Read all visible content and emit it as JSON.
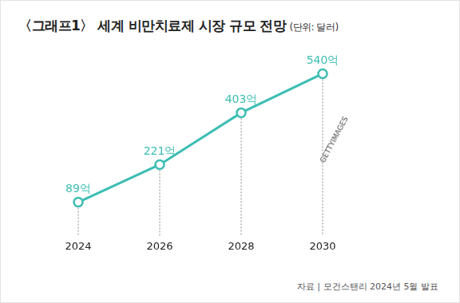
{
  "chart_data": {
    "type": "line",
    "title": "〈그래프1〉 세계 비만치료제 시장 규모 전망",
    "subtitle": "(단위: 달러)",
    "source": "자료 | 모건스탠리 2024년 5월 발표",
    "image_credit": "GETTYIMAGES",
    "categories": [
      "2024",
      "2026",
      "2028",
      "2030"
    ],
    "values": [
      89,
      221,
      403,
      540
    ],
    "value_labels": [
      "89억",
      "221억",
      "403억",
      "540억"
    ],
    "color": "#3dbdb3",
    "marker": "circle",
    "data_labels": true,
    "tick_labels": "x",
    "grid": false
  }
}
